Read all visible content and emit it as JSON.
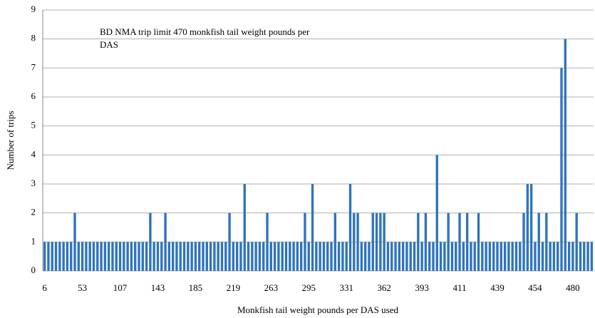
{
  "chart_data": {
    "type": "bar",
    "annotation": [
      "BD NMA trip limit 470 monkfish tail weight pounds per",
      "DAS"
    ],
    "x_label": "Monkfish tail weight pounds per DAS used",
    "y_label": "Number of trips",
    "categories": [
      "6",
      null,
      null,
      null,
      null,
      null,
      null,
      null,
      null,
      null,
      "53",
      null,
      null,
      null,
      null,
      null,
      null,
      null,
      null,
      null,
      "107",
      null,
      null,
      null,
      null,
      null,
      null,
      null,
      null,
      null,
      "143",
      null,
      null,
      null,
      null,
      null,
      null,
      null,
      null,
      null,
      "185",
      null,
      null,
      null,
      null,
      null,
      null,
      null,
      null,
      null,
      "219",
      null,
      null,
      null,
      null,
      null,
      null,
      null,
      null,
      null,
      "263",
      null,
      null,
      null,
      null,
      null,
      null,
      null,
      null,
      null,
      "295",
      null,
      null,
      null,
      null,
      null,
      null,
      null,
      null,
      null,
      "331",
      null,
      null,
      null,
      null,
      null,
      null,
      null,
      null,
      null,
      "362",
      null,
      null,
      null,
      null,
      null,
      null,
      null,
      null,
      null,
      "393",
      null,
      null,
      null,
      null,
      null,
      null,
      null,
      null,
      null,
      "411",
      null,
      null,
      null,
      null,
      null,
      null,
      null,
      null,
      null,
      "439",
      null,
      null,
      null,
      null,
      null,
      null,
      null,
      null,
      null,
      "454",
      null,
      null,
      null,
      null,
      null,
      null,
      null,
      null,
      null,
      "480",
      null,
      null,
      null,
      null,
      null
    ],
    "values": [
      1,
      1,
      1,
      1,
      1,
      1,
      1,
      1,
      2,
      1,
      1,
      1,
      1,
      1,
      1,
      1,
      1,
      1,
      1,
      1,
      1,
      1,
      1,
      1,
      1,
      1,
      1,
      1,
      2,
      1,
      1,
      1,
      2,
      1,
      1,
      1,
      1,
      1,
      1,
      1,
      1,
      1,
      1,
      1,
      1,
      1,
      1,
      1,
      1,
      2,
      1,
      1,
      1,
      3,
      1,
      1,
      1,
      1,
      1,
      2,
      1,
      1,
      1,
      1,
      1,
      1,
      1,
      1,
      1,
      2,
      1,
      3,
      1,
      1,
      1,
      1,
      1,
      2,
      1,
      1,
      1,
      3,
      2,
      2,
      1,
      1,
      1,
      2,
      2,
      2,
      2,
      1,
      1,
      1,
      1,
      1,
      1,
      1,
      1,
      2,
      1,
      2,
      1,
      1,
      4,
      1,
      1,
      2,
      1,
      1,
      2,
      1,
      2,
      1,
      1,
      2,
      1,
      1,
      1,
      1,
      1,
      1,
      1,
      1,
      1,
      1,
      1,
      2,
      3,
      3,
      1,
      2,
      1,
      2,
      1,
      1,
      1,
      7,
      8,
      1,
      1,
      2,
      1,
      1,
      1,
      1
    ],
    "color": "#2f74bd",
    "ylim": [
      0,
      9
    ],
    "yticks": [
      0,
      1,
      2,
      3,
      4,
      5,
      6,
      7,
      8,
      9
    ],
    "grid": true
  }
}
